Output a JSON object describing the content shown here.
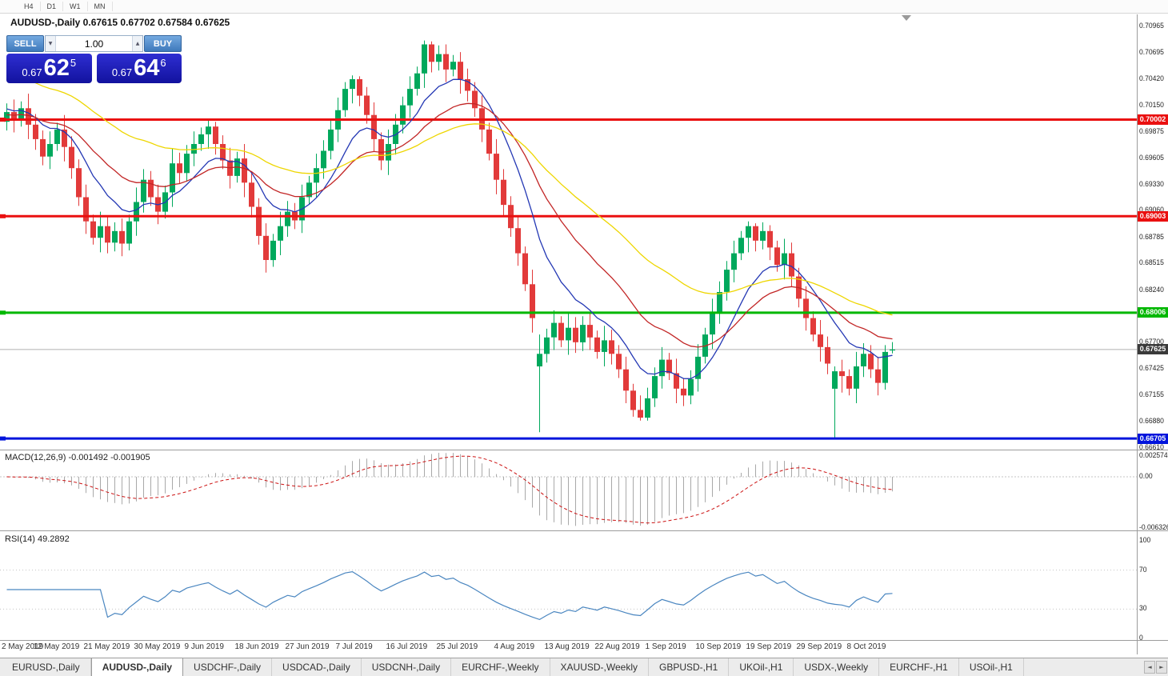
{
  "timeframe_bar": {
    "buttons": [
      "H4",
      "D1",
      "W1",
      "MN"
    ]
  },
  "chart": {
    "title": "AUDUSD-,Daily 0.67615 0.67702 0.67584 0.67625"
  },
  "trade_panel": {
    "sell_label": "SELL",
    "buy_label": "BUY",
    "volume_value": "1.00",
    "volume_down_icon": "▼",
    "volume_up_icon": "▲",
    "sell_price_prefix": "0.67",
    "sell_price_big": "62",
    "sell_price_sup": "5",
    "buy_price_prefix": "0.67",
    "buy_price_big": "64",
    "buy_price_sup": "6"
  },
  "price_axis": {
    "labels": [
      "0.70965",
      "0.70695",
      "0.70420",
      "0.70150",
      "0.69875",
      "0.69605",
      "0.69330",
      "0.69060",
      "0.68785",
      "0.68515",
      "0.68240",
      "0.67970",
      "0.67700",
      "0.67425",
      "0.67155",
      "0.66880",
      "0.66610"
    ],
    "top_value": 0.7109,
    "bottom_value": 0.6659
  },
  "current_price": {
    "label": "0.67625",
    "value": 0.67625,
    "line_color": "#b0b0b0",
    "tag_color": "#3a3a3a"
  },
  "macd_panel": {
    "label": "MACD(12,26,9) -0.001492 -0.001905",
    "axis": [
      {
        "label": "0.002574",
        "value": 0.002574
      },
      {
        "label": "0.00",
        "value": 0
      },
      {
        "label": "-0.006326",
        "value": -0.006326
      }
    ]
  },
  "rsi_panel": {
    "label": "RSI(14) 49.2892",
    "axis": [
      {
        "label": "100",
        "value": 100
      },
      {
        "label": "70",
        "value": 70
      },
      {
        "label": "30",
        "value": 30
      },
      {
        "label": "0",
        "value": 0
      }
    ],
    "levels": [
      70,
      30
    ]
  },
  "date_axis": [
    {
      "label": "2 May 2019",
      "bar": 0
    },
    {
      "label": "12 May 2019",
      "bar": 7
    },
    {
      "label": "21 May 2019",
      "bar": 14
    },
    {
      "label": "30 May 2019",
      "bar": 21
    },
    {
      "label": "9 Jun 2019",
      "bar": 28
    },
    {
      "label": "18 Jun 2019",
      "bar": 35
    },
    {
      "label": "27 Jun 2019",
      "bar": 42
    },
    {
      "label": "7 Jul 2019",
      "bar": 49
    },
    {
      "label": "16 Jul 2019",
      "bar": 56
    },
    {
      "label": "25 Jul 2019",
      "bar": 63
    },
    {
      "label": "4 Aug 2019",
      "bar": 71
    },
    {
      "label": "13 Aug 2019",
      "bar": 78
    },
    {
      "label": "22 Aug 2019",
      "bar": 85
    },
    {
      "label": "1 Sep 2019",
      "bar": 92
    },
    {
      "label": "10 Sep 2019",
      "bar": 99
    },
    {
      "label": "19 Sep 2019",
      "bar": 106
    },
    {
      "label": "29 Sep 2019",
      "bar": 113
    },
    {
      "label": "8 Oct 2019",
      "bar": 120
    }
  ],
  "tabs": {
    "items": [
      {
        "label": "EURUSD-,Daily",
        "active": false
      },
      {
        "label": "AUDUSD-,Daily",
        "active": true
      },
      {
        "label": "USDCHF-,Daily",
        "active": false
      },
      {
        "label": "USDCAD-,Daily",
        "active": false
      },
      {
        "label": "USDCNH-,Daily",
        "active": false
      },
      {
        "label": "EURCHF-,Weekly",
        "active": false
      },
      {
        "label": "XAUUSD-,Weekly",
        "active": false
      },
      {
        "label": "GBPUSD-,H1",
        "active": false
      },
      {
        "label": "UKOil-,H1",
        "active": false
      },
      {
        "label": "USDX-,Weekly",
        "active": false
      },
      {
        "label": "EURCHF-,H1",
        "active": false
      },
      {
        "label": "USOil-,H1",
        "active": false
      }
    ],
    "scroll_left_icon": "◄",
    "scroll_right_icon": "►"
  },
  "chart_data": {
    "type": "candlestick",
    "symbol": "AUDUSD-",
    "period": "Daily",
    "last_ohlc": {
      "open": 0.67615,
      "high": 0.67702,
      "low": 0.67584,
      "close": 0.67625
    },
    "up_color": "#00a85c",
    "down_color": "#e23a3a",
    "ylim": [
      0.6659,
      0.7109
    ],
    "hlines": [
      {
        "name": "resistance-line-070002",
        "label": "0.70002",
        "value": 0.70002,
        "color": "#ea1010"
      },
      {
        "name": "resistance-line-069003",
        "label": "0.69003",
        "value": 0.69003,
        "color": "#ea1010"
      },
      {
        "name": "support-line-068006",
        "label": "0.68006",
        "value": 0.68006,
        "color": "#00b800"
      },
      {
        "name": "support-line-066705",
        "label": "0.66705",
        "value": 0.66705,
        "color": "#0014dc"
      }
    ],
    "moving_averages": [
      {
        "name": "ma-fast-blue-line",
        "period": 10,
        "seed": 0.7012,
        "color": "#2438b4"
      },
      {
        "name": "ma-mid-red-line",
        "period": 22,
        "seed": 0.7005,
        "color": "#c22626"
      },
      {
        "name": "ma-slow-yellow-line",
        "period": 45,
        "seed": 0.7048,
        "color": "#eed600"
      }
    ],
    "indicators": {
      "macd": {
        "fast": 12,
        "slow": 26,
        "signal_period": 9,
        "value": -0.001492,
        "signal_value": -0.001905,
        "histogram_color": "#a9a9a9",
        "signal_color": "#cc1111"
      },
      "rsi": {
        "period": 14,
        "value": 49.2892,
        "color": "#4a86c0"
      }
    },
    "candles": [
      [
        0.6998,
        0.7017,
        0.6989,
        0.7008
      ],
      [
        0.7008,
        0.7021,
        0.6987,
        0.7
      ],
      [
        0.7,
        0.7019,
        0.6993,
        0.7012
      ],
      [
        0.7012,
        0.7027,
        0.698,
        0.6995
      ],
      [
        0.6995,
        0.7006,
        0.6969,
        0.698
      ],
      [
        0.698,
        0.6989,
        0.6953,
        0.6962
      ],
      [
        0.6962,
        0.6988,
        0.6949,
        0.6975
      ],
      [
        0.6975,
        0.6997,
        0.6968,
        0.699
      ],
      [
        0.699,
        0.7005,
        0.6957,
        0.6972
      ],
      [
        0.6972,
        0.6983,
        0.6939,
        0.695
      ],
      [
        0.695,
        0.6959,
        0.6911,
        0.692
      ],
      [
        0.692,
        0.6933,
        0.6882,
        0.6895
      ],
      [
        0.6895,
        0.6902,
        0.6871,
        0.6878
      ],
      [
        0.6878,
        0.6905,
        0.6863,
        0.689
      ],
      [
        0.689,
        0.6901,
        0.6862,
        0.6873
      ],
      [
        0.6873,
        0.6894,
        0.6864,
        0.6885
      ],
      [
        0.6885,
        0.6898,
        0.6859,
        0.6872
      ],
      [
        0.6872,
        0.6902,
        0.6865,
        0.6895
      ],
      [
        0.6895,
        0.693,
        0.688,
        0.6915
      ],
      [
        0.6915,
        0.6949,
        0.6904,
        0.6938
      ],
      [
        0.6938,
        0.6947,
        0.6911,
        0.692
      ],
      [
        0.692,
        0.6933,
        0.6892,
        0.6905
      ],
      [
        0.6905,
        0.6932,
        0.6898,
        0.6925
      ],
      [
        0.6925,
        0.697,
        0.691,
        0.6955
      ],
      [
        0.6955,
        0.6966,
        0.6934,
        0.6945
      ],
      [
        0.6945,
        0.6974,
        0.6936,
        0.6965
      ],
      [
        0.6965,
        0.6988,
        0.6952,
        0.6975
      ],
      [
        0.6975,
        0.6992,
        0.6968,
        0.6985
      ],
      [
        0.6985,
        0.6999,
        0.697,
        0.6993
      ],
      [
        0.6993,
        0.6998,
        0.6964,
        0.6975
      ],
      [
        0.6975,
        0.6984,
        0.6949,
        0.6958
      ],
      [
        0.6958,
        0.6971,
        0.6929,
        0.6942
      ],
      [
        0.6942,
        0.6967,
        0.6935,
        0.696
      ],
      [
        0.696,
        0.6975,
        0.692,
        0.6935
      ],
      [
        0.6935,
        0.6946,
        0.6899,
        0.691
      ],
      [
        0.691,
        0.6919,
        0.6871,
        0.688
      ],
      [
        0.688,
        0.6893,
        0.6842,
        0.6855
      ],
      [
        0.6855,
        0.6882,
        0.6848,
        0.6875
      ],
      [
        0.6875,
        0.6905,
        0.686,
        0.689
      ],
      [
        0.689,
        0.6916,
        0.6879,
        0.6905
      ],
      [
        0.6905,
        0.6914,
        0.6887,
        0.6896
      ],
      [
        0.6896,
        0.6933,
        0.6883,
        0.692
      ],
      [
        0.692,
        0.6942,
        0.6913,
        0.6935
      ],
      [
        0.6935,
        0.6965,
        0.692,
        0.695
      ],
      [
        0.695,
        0.6979,
        0.6939,
        0.6968
      ],
      [
        0.6968,
        0.6999,
        0.6959,
        0.699
      ],
      [
        0.699,
        0.7023,
        0.6977,
        0.701
      ],
      [
        0.701,
        0.7039,
        0.7003,
        0.7032
      ],
      [
        0.7032,
        0.7046,
        0.7017,
        0.7042
      ],
      [
        0.7042,
        0.7045,
        0.7014,
        0.7025
      ],
      [
        0.7025,
        0.7034,
        0.6996,
        0.7005
      ],
      [
        0.7005,
        0.7018,
        0.6967,
        0.698
      ],
      [
        0.698,
        0.6987,
        0.6948,
        0.6958
      ],
      [
        0.6958,
        0.699,
        0.6943,
        0.6975
      ],
      [
        0.6975,
        0.7006,
        0.6964,
        0.6995
      ],
      [
        0.6995,
        0.7024,
        0.6986,
        0.7015
      ],
      [
        0.7015,
        0.7045,
        0.7002,
        0.7032
      ],
      [
        0.7032,
        0.7055,
        0.7025,
        0.7048
      ],
      [
        0.7048,
        0.7082,
        0.7033,
        0.7078
      ],
      [
        0.7078,
        0.7081,
        0.7049,
        0.706
      ],
      [
        0.706,
        0.7077,
        0.7051,
        0.7068
      ],
      [
        0.7068,
        0.7078,
        0.7039,
        0.7052
      ],
      [
        0.7052,
        0.7067,
        0.7045,
        0.706
      ],
      [
        0.706,
        0.707,
        0.7027,
        0.7042
      ],
      [
        0.7042,
        0.7053,
        0.7019,
        0.703
      ],
      [
        0.703,
        0.7039,
        0.7003,
        0.7012
      ],
      [
        0.7012,
        0.7025,
        0.6977,
        0.699
      ],
      [
        0.699,
        0.6997,
        0.6958,
        0.6965
      ],
      [
        0.6965,
        0.698,
        0.6923,
        0.6938
      ],
      [
        0.6938,
        0.6949,
        0.6901,
        0.6912
      ],
      [
        0.6912,
        0.6921,
        0.6879,
        0.6888
      ],
      [
        0.6888,
        0.6901,
        0.6849,
        0.6862
      ],
      [
        0.6862,
        0.6869,
        0.6823,
        0.683
      ],
      [
        0.683,
        0.6845,
        0.678,
        0.6795
      ],
      [
        0.6745,
        0.6778,
        0.6677,
        0.6758
      ],
      [
        0.6758,
        0.6784,
        0.6749,
        0.6775
      ],
      [
        0.6775,
        0.6803,
        0.6762,
        0.679
      ],
      [
        0.679,
        0.6797,
        0.6765,
        0.6772
      ],
      [
        0.6772,
        0.68,
        0.6757,
        0.6785
      ],
      [
        0.6785,
        0.6796,
        0.6759,
        0.677
      ],
      [
        0.677,
        0.6797,
        0.6761,
        0.6788
      ],
      [
        0.6788,
        0.6801,
        0.6762,
        0.6775
      ],
      [
        0.6775,
        0.6782,
        0.6753,
        0.676
      ],
      [
        0.676,
        0.6787,
        0.6745,
        0.6772
      ],
      [
        0.6772,
        0.6783,
        0.6747,
        0.6758
      ],
      [
        0.6758,
        0.6767,
        0.6733,
        0.6742
      ],
      [
        0.6742,
        0.6755,
        0.6707,
        0.672
      ],
      [
        0.672,
        0.6727,
        0.6693,
        0.67
      ],
      [
        0.67,
        0.6715,
        0.6689,
        0.6692
      ],
      [
        0.6692,
        0.6723,
        0.6689,
        0.6712
      ],
      [
        0.6712,
        0.6744,
        0.6703,
        0.6735
      ],
      [
        0.6735,
        0.6765,
        0.6722,
        0.6752
      ],
      [
        0.6752,
        0.6759,
        0.6731,
        0.6738
      ],
      [
        0.6738,
        0.6753,
        0.6707,
        0.6722
      ],
      [
        0.6722,
        0.6733,
        0.6704,
        0.6715
      ],
      [
        0.6715,
        0.6741,
        0.6706,
        0.6732
      ],
      [
        0.6732,
        0.6768,
        0.6719,
        0.6755
      ],
      [
        0.6755,
        0.6785,
        0.6748,
        0.6778
      ],
      [
        0.6778,
        0.6815,
        0.6763,
        0.68
      ],
      [
        0.68,
        0.6833,
        0.6789,
        0.6822
      ],
      [
        0.6822,
        0.6854,
        0.6813,
        0.6845
      ],
      [
        0.6845,
        0.6875,
        0.6832,
        0.6862
      ],
      [
        0.6862,
        0.6885,
        0.6855,
        0.6878
      ],
      [
        0.6878,
        0.6895,
        0.6863,
        0.689
      ],
      [
        0.689,
        0.6893,
        0.6864,
        0.6875
      ],
      [
        0.6875,
        0.6894,
        0.6866,
        0.6885
      ],
      [
        0.6885,
        0.6891,
        0.6855,
        0.6868
      ],
      [
        0.6868,
        0.6875,
        0.6843,
        0.685
      ],
      [
        0.685,
        0.6877,
        0.6835,
        0.6862
      ],
      [
        0.6862,
        0.6873,
        0.6827,
        0.6838
      ],
      [
        0.6838,
        0.6847,
        0.6806,
        0.6815
      ],
      [
        0.6815,
        0.6828,
        0.6782,
        0.6795
      ],
      [
        0.6795,
        0.6802,
        0.6771,
        0.6778
      ],
      [
        0.6778,
        0.6793,
        0.675,
        0.6765
      ],
      [
        0.6765,
        0.6776,
        0.6737,
        0.6748
      ],
      [
        0.6722,
        0.6745,
        0.66705,
        0.674
      ],
      [
        0.674,
        0.6752,
        0.6718,
        0.6735
      ],
      [
        0.6735,
        0.6742,
        0.6715,
        0.6722
      ],
      [
        0.6722,
        0.676,
        0.6707,
        0.6745
      ],
      [
        0.6745,
        0.6769,
        0.6734,
        0.6758
      ],
      [
        0.6758,
        0.6767,
        0.6733,
        0.6742
      ],
      [
        0.6742,
        0.6755,
        0.6715,
        0.6728
      ],
      [
        0.6728,
        0.6767,
        0.6721,
        0.676
      ],
      [
        0.67615,
        0.67702,
        0.67584,
        0.67625
      ]
    ]
  }
}
